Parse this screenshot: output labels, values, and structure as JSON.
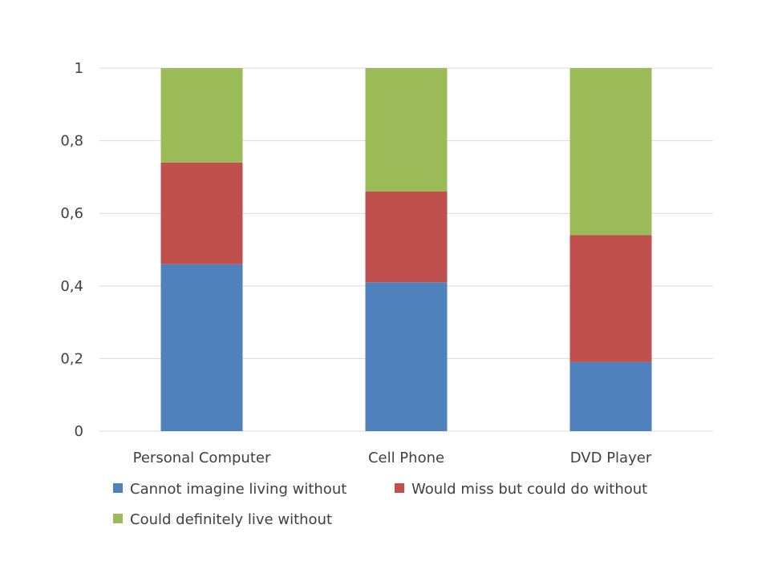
{
  "chart_data": {
    "type": "bar",
    "stacked": true,
    "categories": [
      "Personal Computer",
      "Cell Phone",
      "DVD Player"
    ],
    "series": [
      {
        "name": "Cannot imagine living without",
        "color": "#4f81bd",
        "values": [
          0.46,
          0.41,
          0.19
        ]
      },
      {
        "name": "Would miss but could do without",
        "color": "#c0504d",
        "values": [
          0.28,
          0.25,
          0.35
        ]
      },
      {
        "name": "Could definitely live without",
        "color": "#9bbb59",
        "values": [
          0.26,
          0.34,
          0.46
        ]
      }
    ],
    "yticks": [
      "0",
      "0,2",
      "0,4",
      "0,6",
      "0,8",
      "1"
    ],
    "ytick_values": [
      0,
      0.2,
      0.4,
      0.6,
      0.8,
      1
    ],
    "ylim": [
      0,
      1
    ],
    "grid": true,
    "legend_position": "bottom"
  }
}
